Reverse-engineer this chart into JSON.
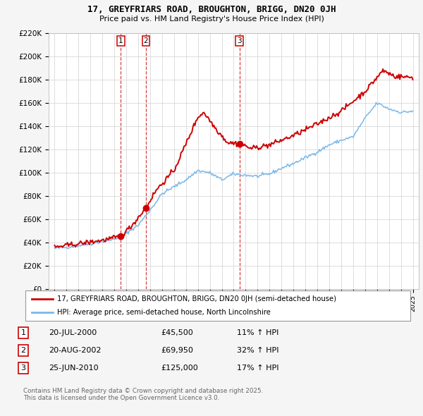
{
  "title1": "17, GREYFRIARS ROAD, BROUGHTON, BRIGG, DN20 0JH",
  "title2": "Price paid vs. HM Land Registry's House Price Index (HPI)",
  "legend_line1": "17, GREYFRIARS ROAD, BROUGHTON, BRIGG, DN20 0JH (semi-detached house)",
  "legend_line2": "HPI: Average price, semi-detached house, North Lincolnshire",
  "sales": [
    {
      "num": 1,
      "date_label": "20-JUL-2000",
      "date_x": 2000.55,
      "price": 45500,
      "pct": "11% ↑ HPI"
    },
    {
      "num": 2,
      "date_label": "20-AUG-2002",
      "date_x": 2002.64,
      "price": 69950,
      "pct": "32% ↑ HPI"
    },
    {
      "num": 3,
      "date_label": "25-JUN-2010",
      "date_x": 2010.48,
      "price": 125000,
      "pct": "17% ↑ HPI"
    }
  ],
  "footer": "Contains HM Land Registry data © Crown copyright and database right 2025.\nThis data is licensed under the Open Government Licence v3.0.",
  "hpi_color": "#7ab8e8",
  "price_color": "#cc0000",
  "vline_color": "#cc0000",
  "background": "#f5f5f5",
  "plot_bg": "#ffffff",
  "ylim": [
    0,
    220000
  ],
  "yticks": [
    0,
    20000,
    40000,
    60000,
    80000,
    100000,
    120000,
    140000,
    160000,
    180000,
    200000,
    220000
  ],
  "xlim": [
    1994.5,
    2025.5
  ],
  "hpi_waypoints_x": [
    1995.0,
    1996.0,
    1997.0,
    1998.0,
    1999.0,
    2000.0,
    2001.0,
    2002.0,
    2003.0,
    2004.0,
    2005.0,
    2006.0,
    2007.0,
    2008.0,
    2009.0,
    2010.0,
    2011.0,
    2012.0,
    2013.0,
    2014.0,
    2015.0,
    2016.0,
    2017.0,
    2018.0,
    2019.0,
    2020.0,
    2021.0,
    2022.0,
    2023.0,
    2024.0,
    2025.0
  ],
  "hpi_waypoints_y": [
    35000,
    36000,
    37500,
    39000,
    41000,
    43000,
    48000,
    55000,
    68000,
    82000,
    88000,
    94000,
    102000,
    100000,
    94000,
    99000,
    98000,
    97000,
    99000,
    104000,
    108000,
    113000,
    118000,
    124000,
    128000,
    131000,
    147000,
    160000,
    155000,
    152000,
    153000
  ],
  "price_waypoints_x": [
    1995.0,
    1999.0,
    2000.0,
    2000.55,
    2001.5,
    2002.64,
    2003.5,
    2005.0,
    2007.0,
    2007.5,
    2008.5,
    2009.5,
    2010.48,
    2011.5,
    2013.0,
    2015.0,
    2017.0,
    2019.0,
    2021.0,
    2022.5,
    2023.5,
    2025.0
  ],
  "price_waypoints_y": [
    36000,
    42000,
    44000,
    45500,
    55000,
    69950,
    85000,
    102000,
    148000,
    152000,
    138000,
    126000,
    125000,
    121000,
    124000,
    132000,
    142000,
    153000,
    170000,
    188000,
    183000,
    182000
  ]
}
